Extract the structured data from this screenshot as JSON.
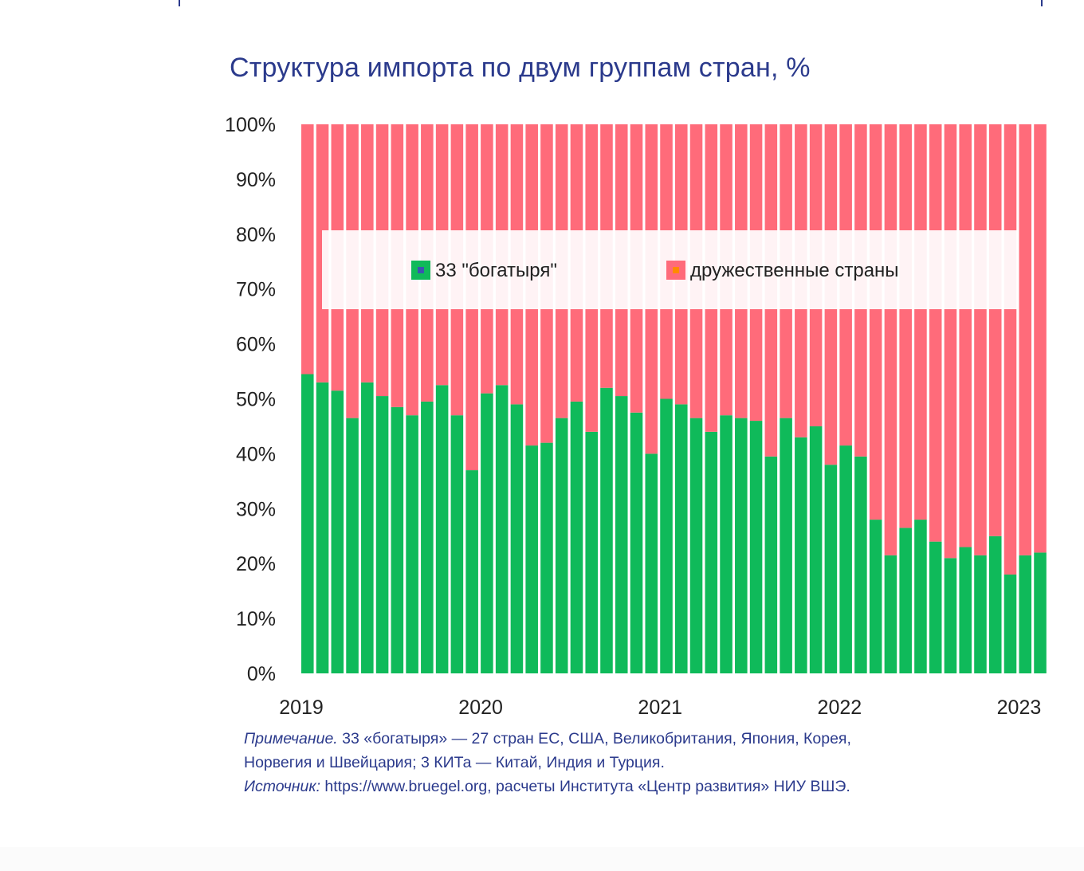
{
  "chart_data": {
    "type": "bar",
    "stacked": true,
    "percent_stacked": true,
    "title": "Структура импорта по двум группам стран, %",
    "xlabel": "",
    "ylabel": "",
    "ylim": [
      0,
      100
    ],
    "yticks": [
      "0%",
      "10%",
      "20%",
      "30%",
      "40%",
      "50%",
      "60%",
      "70%",
      "80%",
      "90%",
      "100%"
    ],
    "xticks": [
      "2019",
      "2020",
      "2021",
      "2022",
      "2023"
    ],
    "x_start": "2019-01",
    "x_step": "month",
    "bar_count": 50,
    "grid": false,
    "legend_position": "top-center",
    "series": [
      {
        "name": "33 \"богатыря\"",
        "color": "#0fba5a",
        "values": [
          54.5,
          53,
          51.5,
          46.5,
          53,
          50.5,
          48.5,
          47,
          49.5,
          52.5,
          47,
          37,
          51,
          52.5,
          49,
          41.5,
          42,
          46.5,
          49.5,
          44,
          52,
          50.5,
          47.5,
          40,
          50,
          49,
          46.5,
          44,
          47,
          46.5,
          46,
          39.5,
          46.5,
          43,
          45,
          38,
          41.5,
          39.5,
          28,
          21.5,
          26.5,
          28,
          24,
          21,
          23,
          21.5,
          25,
          18,
          21.5,
          22
        ]
      },
      {
        "name": "дружественные страны",
        "color": "#ff6b7a",
        "values": [
          45.5,
          47,
          48.5,
          53.5,
          47,
          49.5,
          51.5,
          53,
          50.5,
          47.5,
          53,
          63,
          49,
          47.5,
          51,
          58.5,
          58,
          53.5,
          50.5,
          56,
          48,
          49.5,
          52.5,
          60,
          50,
          51,
          53.5,
          56,
          53,
          53.5,
          54,
          60.5,
          53.5,
          57,
          55,
          62,
          58.5,
          60.5,
          72,
          78.5,
          73.5,
          72,
          76,
          79,
          77,
          78.5,
          75,
          82,
          78.5,
          78
        ]
      }
    ]
  },
  "legend": {
    "items": [
      {
        "label": "33 \"богатыря\"",
        "color": "#0fba5a",
        "marker": "#3a55b0"
      },
      {
        "label": "дружественные страны",
        "color": "#ff6b7a",
        "marker": "#ff8a00"
      }
    ]
  },
  "notes": {
    "note_lead": "Примечание.",
    "note_line1": " 33 «богатыря» — 27 стран ЕС, США, Великобритания, Япония, Корея,",
    "note_line2": "Норвегия и Швейцария; 3 КИТа — Китай, Индия и Турция.",
    "source_lead": "Источник:",
    "source_text": " https://www.bruegel.org, расчеты Института «Центр развития» НИУ ВШЭ."
  },
  "colors": {
    "title": "#2b3a8c",
    "axis_text": "#222222"
  }
}
